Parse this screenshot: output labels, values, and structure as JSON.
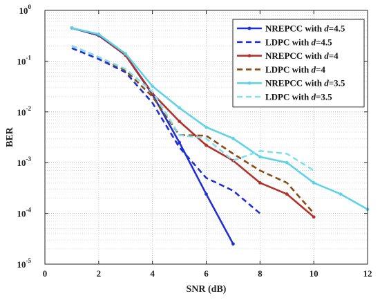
{
  "chart_data": {
    "type": "line",
    "title": "",
    "xlabel": "SNR (dB)",
    "ylabel": "BER",
    "xlim": [
      0,
      12
    ],
    "ylim": [
      1e-05,
      1
    ],
    "yscale": "log",
    "grid": true,
    "legend_position": "top-right",
    "x_ticks": [
      "0",
      "2",
      "4",
      "6",
      "8",
      "10",
      "12"
    ],
    "y_ticks": [
      {
        "base": "10",
        "exp": "0"
      },
      {
        "base": "10",
        "exp": "-1"
      },
      {
        "base": "10",
        "exp": "-2"
      },
      {
        "base": "10",
        "exp": "-3"
      },
      {
        "base": "10",
        "exp": "-4"
      },
      {
        "base": "10",
        "exp": "-5"
      }
    ],
    "series": [
      {
        "name_prefix": "NREPCC with ",
        "name_var": "d",
        "name_suffix": "=4.5",
        "color": "#1f2fd6",
        "style": "solid",
        "marker": true,
        "x": [
          1,
          2,
          3,
          4,
          5,
          6,
          7
        ],
        "y": [
          0.45,
          0.32,
          0.13,
          0.022,
          0.0025,
          0.00024,
          2.5e-05
        ]
      },
      {
        "name_prefix": "LDPC with ",
        "name_var": "d",
        "name_suffix": "=4.5",
        "color": "#1f2fd6",
        "style": "dashed",
        "marker": false,
        "x": [
          1,
          2,
          3,
          4,
          5,
          6,
          7,
          8
        ],
        "y": [
          0.18,
          0.11,
          0.06,
          0.015,
          0.002,
          0.0005,
          0.00028,
          0.0001
        ]
      },
      {
        "name_prefix": "NREPCC with ",
        "name_var": "d",
        "name_suffix": "=4",
        "color": "#b5302a",
        "style": "solid",
        "marker": true,
        "x": [
          1,
          2,
          3,
          4,
          5,
          6,
          7,
          8,
          9,
          10
        ],
        "y": [
          0.45,
          0.33,
          0.13,
          0.023,
          0.0065,
          0.0022,
          0.0011,
          0.0004,
          0.00024,
          8.5e-05
        ]
      },
      {
        "name_prefix": "LDPC with ",
        "name_var": "d",
        "name_suffix": "=4",
        "color": "#8a4a12",
        "style": "dashed",
        "marker": false,
        "x": [
          1,
          2,
          3,
          4,
          5,
          6,
          7,
          8,
          9,
          10
        ],
        "y": [
          0.2,
          0.12,
          0.065,
          0.02,
          0.0035,
          0.0034,
          0.0015,
          0.0007,
          0.0004,
          0.0001
        ]
      },
      {
        "name_prefix": "NREPCC with ",
        "name_var": "d",
        "name_suffix": "=3.5",
        "color": "#5fd3e6",
        "style": "solid",
        "marker": true,
        "x": [
          1,
          2,
          3,
          4,
          5,
          6,
          7,
          8,
          9,
          10,
          11,
          12
        ],
        "y": [
          0.45,
          0.34,
          0.14,
          0.032,
          0.012,
          0.005,
          0.003,
          0.0013,
          0.001,
          0.0004,
          0.00024,
          0.00012
        ]
      },
      {
        "name_prefix": "LDPC with ",
        "name_var": "d",
        "name_suffix": "=3.5",
        "color": "#7fe0f0",
        "style": "dashed",
        "marker": false,
        "x": [
          1,
          2,
          3,
          4,
          5,
          6,
          7,
          8,
          9,
          10
        ],
        "y": [
          0.2,
          0.12,
          0.07,
          0.025,
          0.0035,
          0.003,
          0.0011,
          0.0017,
          0.0015,
          0.0007
        ]
      }
    ]
  }
}
